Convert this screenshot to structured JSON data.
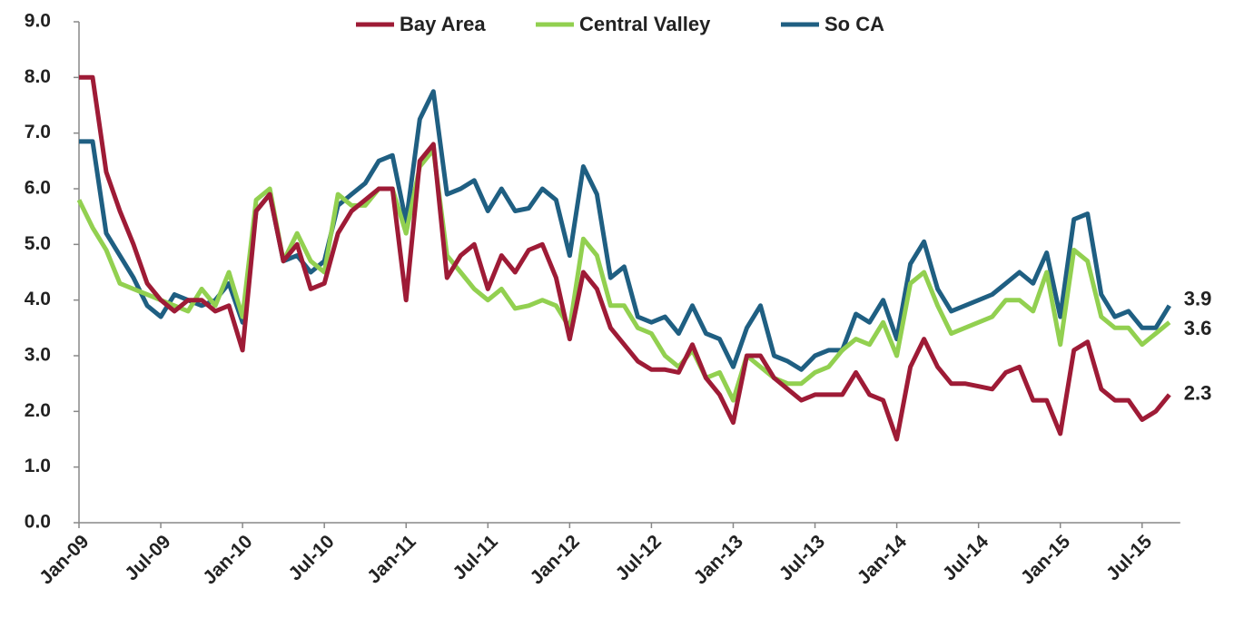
{
  "chart_data": {
    "type": "line",
    "categories": [
      "Jan-09",
      null,
      null,
      null,
      null,
      null,
      "Jul-09",
      null,
      null,
      null,
      null,
      null,
      "Jan-10",
      null,
      null,
      null,
      null,
      null,
      "Jul-10",
      null,
      null,
      null,
      null,
      null,
      "Jan-11",
      null,
      null,
      null,
      null,
      null,
      "Jul-11",
      null,
      null,
      null,
      null,
      null,
      "Jan-12",
      null,
      null,
      null,
      null,
      null,
      "Jul-12",
      null,
      null,
      null,
      null,
      null,
      "Jan-13",
      null,
      null,
      null,
      null,
      null,
      "Jul-13",
      null,
      null,
      null,
      null,
      null,
      "Jan-14",
      null,
      null,
      null,
      null,
      null,
      "Jul-14",
      null,
      null,
      null,
      null,
      null,
      "Jan-15",
      null,
      null,
      null,
      null,
      null,
      "Jul-15",
      null,
      null
    ],
    "series": [
      {
        "name": "Bay Area",
        "color": "#9e1b36",
        "values": [
          8.0,
          8.0,
          6.3,
          5.6,
          5.0,
          4.3,
          4.0,
          3.8,
          4.0,
          4.0,
          3.8,
          3.9,
          3.1,
          5.6,
          5.9,
          4.7,
          5.0,
          4.2,
          4.3,
          5.2,
          5.6,
          5.8,
          6.0,
          6.0,
          4.0,
          6.5,
          6.8,
          4.4,
          4.8,
          5.0,
          4.2,
          4.8,
          4.5,
          4.9,
          5.0,
          4.4,
          3.3,
          4.5,
          4.2,
          3.5,
          3.2,
          2.9,
          2.75,
          2.75,
          2.7,
          3.2,
          2.6,
          2.3,
          1.8,
          3.0,
          3.0,
          2.6,
          2.4,
          2.2,
          2.3,
          2.3,
          2.3,
          2.7,
          2.3,
          2.2,
          1.5,
          2.8,
          3.3,
          2.8,
          2.5,
          2.5,
          2.45,
          2.4,
          2.7,
          2.8,
          2.2,
          2.2,
          1.6,
          3.1,
          3.25,
          2.4,
          2.2,
          2.2,
          1.85,
          2.0,
          2.3
        ]
      },
      {
        "name": "Central Valley",
        "color": "#92d050",
        "values": [
          5.8,
          5.3,
          4.9,
          4.3,
          4.2,
          4.1,
          4.0,
          3.9,
          3.8,
          4.2,
          3.9,
          4.5,
          3.7,
          5.8,
          6.0,
          4.7,
          5.2,
          4.7,
          4.5,
          5.9,
          5.7,
          5.7,
          6.0,
          6.0,
          5.2,
          6.4,
          6.7,
          4.8,
          4.5,
          4.2,
          4.0,
          4.2,
          3.85,
          3.9,
          4.0,
          3.9,
          3.5,
          5.1,
          4.8,
          3.9,
          3.9,
          3.5,
          3.4,
          3.0,
          2.8,
          3.1,
          2.6,
          2.7,
          2.2,
          3.0,
          2.8,
          2.6,
          2.5,
          2.5,
          2.7,
          2.8,
          3.1,
          3.3,
          3.2,
          3.6,
          3.0,
          4.3,
          4.5,
          3.9,
          3.4,
          3.5,
          3.6,
          3.7,
          4.0,
          4.0,
          3.8,
          4.5,
          3.2,
          4.9,
          4.7,
          3.7,
          3.5,
          3.5,
          3.2,
          3.4,
          3.6
        ]
      },
      {
        "name": "So CA",
        "color": "#1f5f82",
        "values": [
          6.85,
          6.85,
          5.2,
          4.8,
          4.4,
          3.9,
          3.7,
          4.1,
          4.0,
          3.9,
          4.0,
          4.3,
          3.6,
          5.6,
          5.9,
          4.7,
          4.8,
          4.5,
          4.7,
          5.7,
          5.9,
          6.1,
          6.5,
          6.6,
          5.4,
          7.25,
          7.75,
          5.9,
          6.0,
          6.15,
          5.6,
          6.0,
          5.6,
          5.65,
          6.0,
          5.8,
          4.8,
          6.4,
          5.9,
          4.4,
          4.6,
          3.7,
          3.6,
          3.7,
          3.4,
          3.9,
          3.4,
          3.3,
          2.8,
          3.5,
          3.9,
          3.0,
          2.9,
          2.75,
          3.0,
          3.1,
          3.1,
          3.75,
          3.6,
          4.0,
          3.3,
          4.65,
          5.05,
          4.2,
          3.8,
          3.9,
          4.0,
          4.1,
          4.3,
          4.5,
          4.3,
          4.85,
          3.7,
          5.45,
          5.55,
          4.1,
          3.7,
          3.8,
          3.5,
          3.5,
          3.9
        ]
      }
    ],
    "ylim": [
      0,
      9
    ],
    "yticks": [
      {
        "value": 0,
        "label": "0.0"
      },
      {
        "value": 1,
        "label": "1.0"
      },
      {
        "value": 2,
        "label": "2.0"
      },
      {
        "value": 3,
        "label": "3.0"
      },
      {
        "value": 4,
        "label": "4.0"
      },
      {
        "value": 5,
        "label": "5.0"
      },
      {
        "value": 6,
        "label": "6.0"
      },
      {
        "value": 7,
        "label": "7.0"
      },
      {
        "value": 8,
        "label": "8.0"
      },
      {
        "value": 9,
        "label": "9.0"
      }
    ],
    "grid": false,
    "legend": "top"
  }
}
